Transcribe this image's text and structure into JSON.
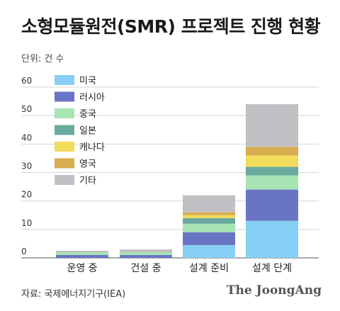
{
  "title": "소형모듈원전(SMR) 프로젝트 진행 현황",
  "unit_label": "단위: 건 수",
  "source": "자료: 국제에너지기구(IEA)",
  "brand": "The JoongAng",
  "chart_data": {
    "type": "bar",
    "stacked": true,
    "categories": [
      "운영 중",
      "건설 중",
      "설계 준비",
      "설계 단계"
    ],
    "series": [
      {
        "name": "미국",
        "color": "#87d0f5",
        "values": [
          0,
          0,
          4.5,
          13
        ]
      },
      {
        "name": "러시아",
        "color": "#6a74c4",
        "values": [
          1,
          1,
          4.5,
          11
        ]
      },
      {
        "name": "중국",
        "color": "#a6e4b3",
        "values": [
          1,
          1,
          3,
          5
        ]
      },
      {
        "name": "일본",
        "color": "#6aa99e",
        "values": [
          0,
          0,
          2,
          3
        ]
      },
      {
        "name": "캐나다",
        "color": "#f2dc5a",
        "values": [
          0,
          0,
          1,
          4
        ]
      },
      {
        "name": "영국",
        "color": "#d6ac4e",
        "values": [
          0,
          0,
          1,
          3
        ]
      },
      {
        "name": "기타",
        "color": "#c2bfc5",
        "values": [
          0.5,
          1,
          6,
          15
        ]
      }
    ],
    "ylim": [
      0,
      60
    ],
    "yticks": [
      0,
      10,
      20,
      30,
      40,
      50,
      60
    ],
    "grid": true,
    "legend": "top-left"
  }
}
